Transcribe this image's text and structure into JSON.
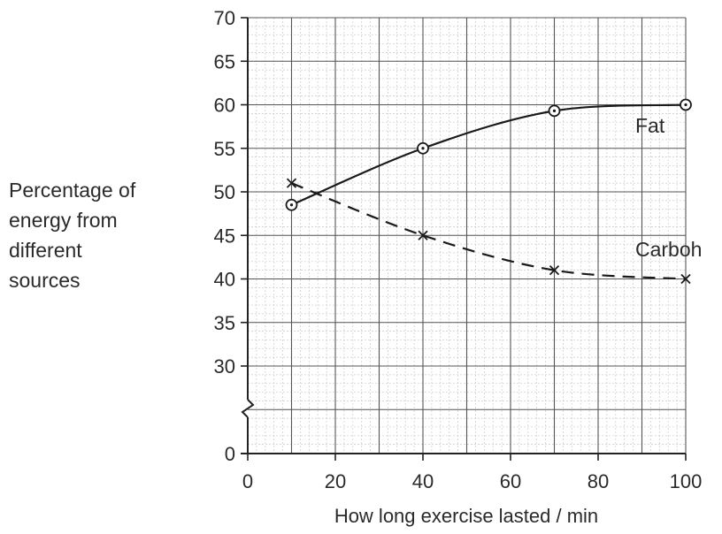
{
  "chart_data": {
    "type": "line",
    "xlabel": "How long exercise lasted / min",
    "ylabel_lines": [
      "Percentage of",
      "energy from",
      "different",
      "sources"
    ],
    "xlim": [
      0,
      100
    ],
    "ylim_display": [
      0,
      70
    ],
    "axis_break": "between 0 and 30",
    "x_ticks": [
      "0",
      "20",
      "40",
      "60",
      "80",
      "100"
    ],
    "y_ticks": [
      "0",
      "30",
      "35",
      "40",
      "45",
      "50",
      "55",
      "60",
      "65",
      "70"
    ],
    "grid": true,
    "series": [
      {
        "name": "Fat",
        "marker": "circle",
        "line_style": "solid",
        "x": [
          10,
          40,
          70,
          100
        ],
        "y": [
          48.5,
          55,
          59.3,
          60
        ]
      },
      {
        "name": "Carboh",
        "marker": "x",
        "line_style": "dashed",
        "x": [
          10,
          40,
          70,
          100
        ],
        "y": [
          51,
          45,
          41,
          40
        ]
      }
    ]
  }
}
